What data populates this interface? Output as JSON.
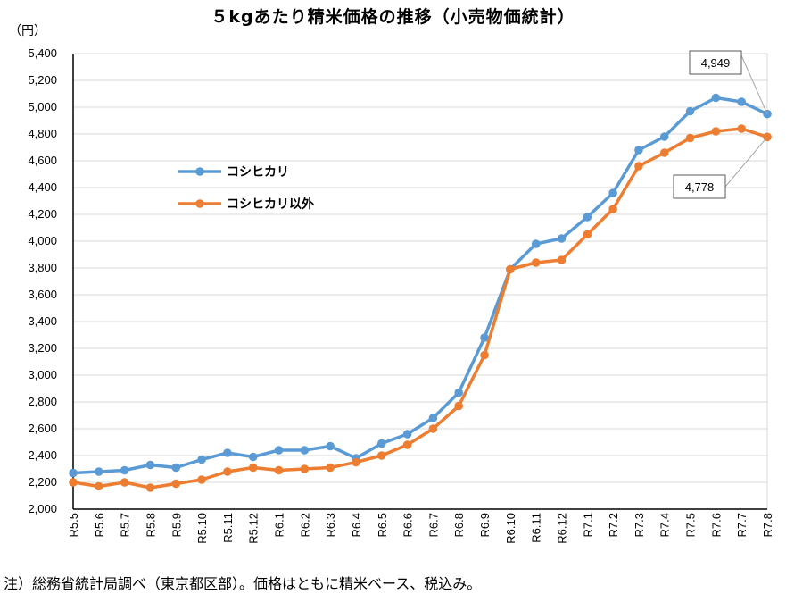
{
  "title": "５kgあたり精米価格の推移（小売物価統計）",
  "unit": "（円）",
  "note": "注）総務省統計局調べ（東京都区部）。価格はともに精米ベース、税込み。",
  "chart_data": {
    "type": "line",
    "categories": [
      "R5.5",
      "R5.6",
      "R5.7",
      "R5.8",
      "R5.9",
      "R5.10",
      "R5.11",
      "R5.12",
      "R6.1",
      "R6.2",
      "R6.3",
      "R6.4",
      "R6.5",
      "R6.6",
      "R6.7",
      "R6.8",
      "R6.9",
      "R6.10",
      "R6.11",
      "R6.12",
      "R7.1",
      "R7.2",
      "R7.3",
      "R7.4",
      "R7.5",
      "R7.6",
      "R7.7",
      "R7.8"
    ],
    "ylim": [
      2000,
      5400
    ],
    "yticks": [
      2000,
      2200,
      2400,
      2600,
      2800,
      3000,
      3200,
      3400,
      3600,
      3800,
      4000,
      4200,
      4400,
      4600,
      4800,
      5000,
      5200,
      5400
    ],
    "ytick_labels": [
      "2,000",
      "2,200",
      "2,400",
      "2,600",
      "2,800",
      "3,000",
      "3,200",
      "3,400",
      "3,600",
      "3,800",
      "4,000",
      "4,200",
      "4,400",
      "4,600",
      "4,800",
      "5,000",
      "5,200",
      "5,400"
    ],
    "grid": true,
    "legend_position": "left-middle",
    "series": [
      {
        "name": "コシヒカリ",
        "color": "#5b9bd5",
        "values": [
          2270,
          2280,
          2290,
          2330,
          2310,
          2370,
          2420,
          2390,
          2440,
          2440,
          2470,
          2380,
          2490,
          2560,
          2680,
          2870,
          3280,
          3790,
          3980,
          4020,
          4180,
          4360,
          4680,
          4780,
          4970,
          5070,
          5040,
          4949
        ]
      },
      {
        "name": "コシヒカリ以外",
        "color": "#ed7d31",
        "values": [
          2200,
          2170,
          2200,
          2160,
          2190,
          2220,
          2280,
          2310,
          2290,
          2300,
          2310,
          2350,
          2400,
          2480,
          2600,
          2770,
          3150,
          3790,
          3840,
          3860,
          4050,
          4240,
          4560,
          4660,
          4770,
          4820,
          4840,
          4778
        ]
      }
    ],
    "annotations": [
      {
        "text": "4,949",
        "series": 0,
        "index": 27
      },
      {
        "text": "4,778",
        "series": 1,
        "index": 27
      }
    ]
  }
}
